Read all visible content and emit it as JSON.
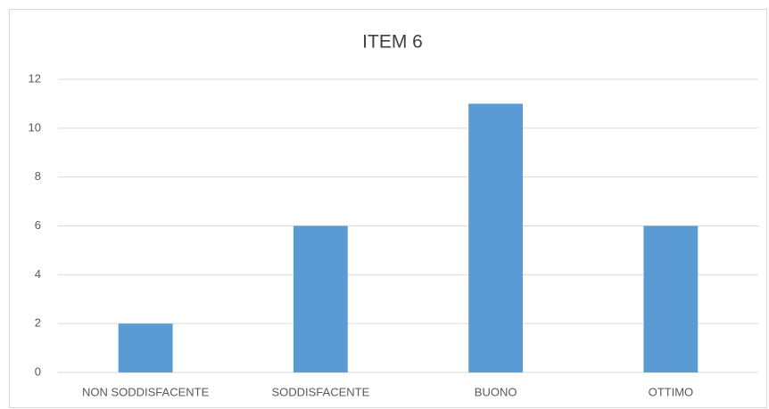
{
  "chart_data": {
    "type": "bar",
    "title": "ITEM 6",
    "categories": [
      "NON SODDISFACENTE",
      "SODDISFACENTE",
      "BUONO",
      "OTTIMO"
    ],
    "values": [
      2,
      6,
      11,
      6
    ],
    "color": "#5b9bd5",
    "ylim": [
      0,
      12
    ],
    "yticks": [
      0,
      2,
      4,
      6,
      8,
      10,
      12
    ],
    "grid": true
  }
}
